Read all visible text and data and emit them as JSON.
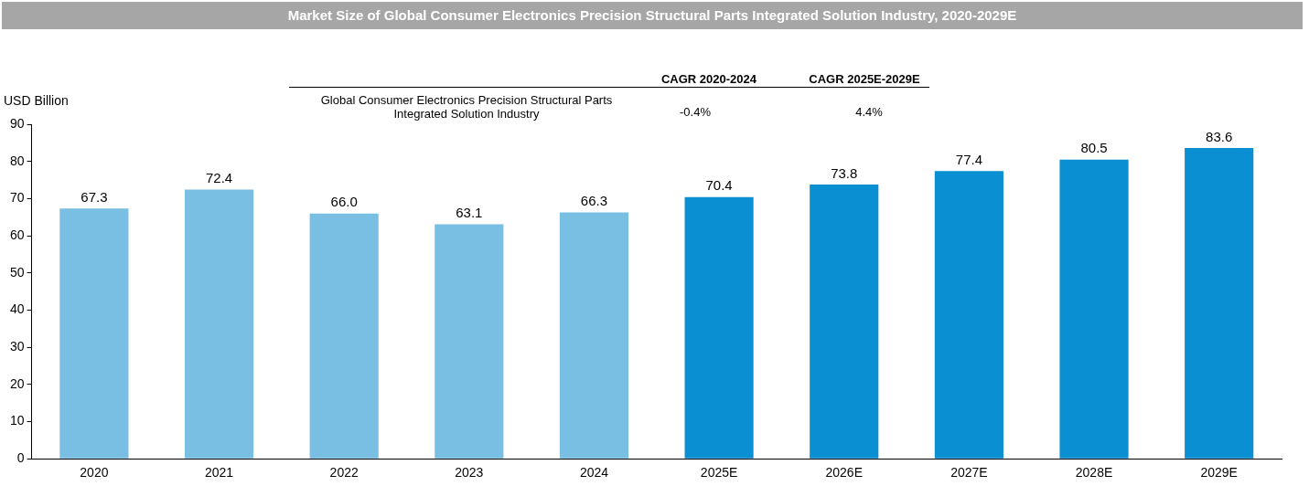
{
  "chart_data": {
    "type": "bar",
    "title": "Market Size of Global Consumer Electronics Precision Structural Parts Integrated Solution Industry, 2020-2029E",
    "ylabel": "USD Billion",
    "categories": [
      "2020",
      "2021",
      "2022",
      "2023",
      "2024",
      "2025E",
      "2026E",
      "2027E",
      "2028E",
      "2029E"
    ],
    "values": [
      67.3,
      72.4,
      66.0,
      63.1,
      66.3,
      70.4,
      73.8,
      77.4,
      80.5,
      83.6
    ],
    "value_labels": [
      "67.3",
      "72.4",
      "66.0",
      "63.1",
      "66.3",
      "70.4",
      "73.8",
      "77.4",
      "80.5",
      "83.6"
    ],
    "colors": [
      "#79bfe3",
      "#79bfe3",
      "#79bfe3",
      "#79bfe3",
      "#79bfe3",
      "#0b8fd3",
      "#0b8fd3",
      "#0b8fd3",
      "#0b8fd3",
      "#0b8fd3"
    ],
    "ylim": [
      0,
      90
    ],
    "yticks": [
      0,
      10,
      20,
      30,
      40,
      50,
      60,
      70,
      80,
      90
    ],
    "grid": false,
    "legend": false,
    "annotations": [
      "CAGR 2020-2024",
      "CAGR 2025E-2029E",
      "Global Consumer Electronics Precision Structural Parts Integrated Solution Industry",
      "-0.4%",
      "4.4%"
    ]
  }
}
